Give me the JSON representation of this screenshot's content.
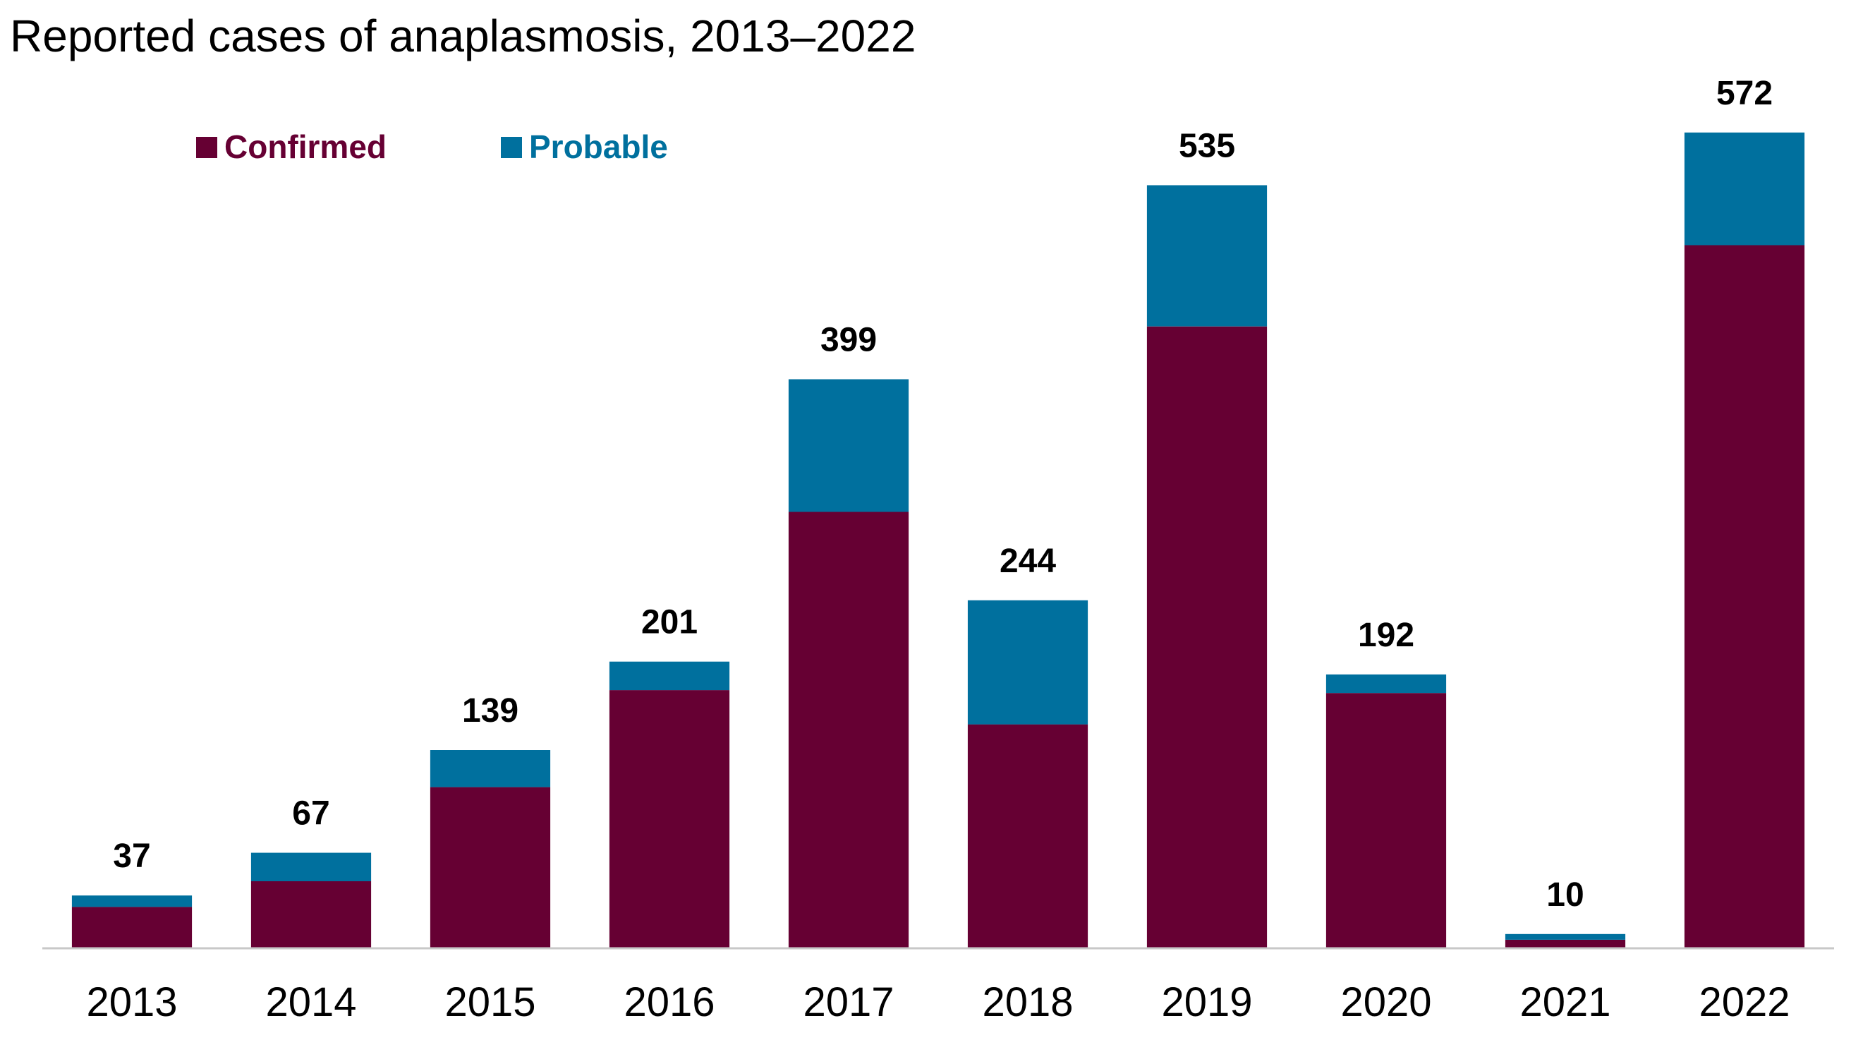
{
  "chart_data": {
    "type": "bar",
    "stacked": true,
    "title": "Reported cases of anaplasmosis, 2013–2022",
    "xlabel": "",
    "ylabel": "",
    "categories": [
      "2013",
      "2014",
      "2015",
      "2016",
      "2017",
      "2018",
      "2019",
      "2020",
      "2021",
      "2022"
    ],
    "series": [
      {
        "name": "Confirmed",
        "color": "#660033",
        "values": [
          29,
          47,
          113,
          181,
          306,
          157,
          436,
          179,
          6,
          493
        ]
      },
      {
        "name": "Probable",
        "color": "#00709e",
        "values": [
          8,
          20,
          26,
          20,
          93,
          87,
          99,
          13,
          4,
          79
        ]
      }
    ],
    "totals": [
      37,
      67,
      139,
      201,
      399,
      244,
      535,
      192,
      10,
      572
    ],
    "ylim": [
      0,
      580
    ],
    "grid": false,
    "legend_position": "top-left"
  }
}
